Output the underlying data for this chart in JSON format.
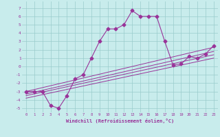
{
  "xlabel": "Windchill (Refroidissement éolien,°C)",
  "background_color": "#c8ecec",
  "line_color": "#993399",
  "grid_color": "#99cccc",
  "xlim": [
    -0.5,
    23.5
  ],
  "ylim": [
    -5.5,
    7.8
  ],
  "xticks": [
    0,
    1,
    2,
    3,
    4,
    5,
    6,
    7,
    8,
    9,
    10,
    11,
    12,
    13,
    14,
    15,
    16,
    17,
    18,
    19,
    20,
    21,
    22,
    23
  ],
  "yticks": [
    -5,
    -4,
    -3,
    -2,
    -1,
    0,
    1,
    2,
    3,
    4,
    5,
    6,
    7
  ],
  "main_x": [
    0,
    1,
    2,
    3,
    4,
    5,
    6,
    7,
    8,
    9,
    10,
    11,
    12,
    13,
    14,
    15,
    16,
    17,
    18,
    19,
    20,
    21,
    22,
    23
  ],
  "main_y": [
    -3,
    -3,
    -3,
    -4.7,
    -5,
    -3.5,
    -1.5,
    -1,
    1,
    3,
    4.5,
    4.5,
    5,
    6.7,
    6,
    6,
    6,
    3,
    0.2,
    0.3,
    1.2,
    1,
    1.5,
    2.5
  ],
  "line1_x": [
    0,
    23
  ],
  "line1_y": [
    -3.0,
    2.3
  ],
  "line2_x": [
    0,
    23
  ],
  "line2_y": [
    -3.3,
    1.8
  ],
  "line3_x": [
    0,
    23
  ],
  "line3_y": [
    -3.5,
    1.4
  ],
  "line4_x": [
    0,
    23
  ],
  "line4_y": [
    -3.8,
    1.0
  ]
}
